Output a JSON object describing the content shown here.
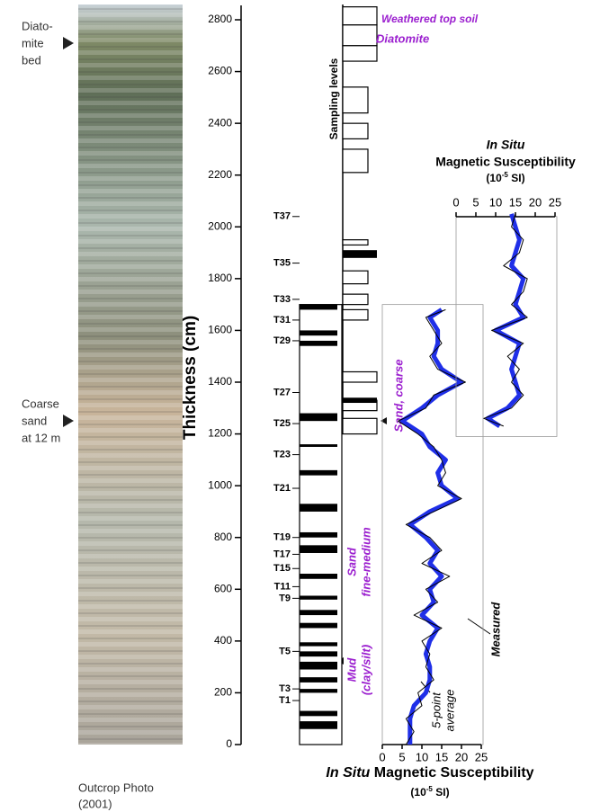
{
  "photo": {
    "top_label": [
      "Diato-",
      "mite",
      "bed"
    ],
    "side_label": [
      "Coarse",
      "sand",
      "at 12 m"
    ],
    "caption": [
      "Outcrop Photo",
      "(2001)"
    ]
  },
  "thickness_axis": {
    "title": "Thickness (cm)",
    "lim": [
      0,
      2800
    ],
    "ticks": [
      0,
      200,
      400,
      600,
      800,
      1000,
      1200,
      1400,
      1600,
      1800,
      2000,
      2200,
      2400,
      2600,
      2800
    ]
  },
  "sampling_label": "Sampling levels",
  "samples": [
    {
      "label": "T1",
      "value": 170
    },
    {
      "label": "T3",
      "value": 215
    },
    {
      "label": "T5",
      "value": 360
    },
    {
      "label": "T9",
      "value": 565
    },
    {
      "label": "T11",
      "value": 610
    },
    {
      "label": "T15",
      "value": 680
    },
    {
      "label": "T17",
      "value": 735
    },
    {
      "label": "T19",
      "value": 800
    },
    {
      "label": "T21",
      "value": 990
    },
    {
      "label": "T23",
      "value": 1120
    },
    {
      "label": "T25",
      "value": 1240
    },
    {
      "label": "T27",
      "value": 1360
    },
    {
      "label": "T29",
      "value": 1560
    },
    {
      "label": "T31",
      "value": 1640
    },
    {
      "label": "T33",
      "value": 1720
    },
    {
      "label": "T35",
      "value": 1860
    },
    {
      "label": "T37",
      "value": 2040
    }
  ],
  "lower_column_beds": [
    [
      60,
      90
    ],
    [
      110,
      130
    ],
    [
      200,
      215
    ],
    [
      240,
      260
    ],
    [
      290,
      320
    ],
    [
      340,
      360
    ],
    [
      380,
      395
    ],
    [
      450,
      470
    ],
    [
      500,
      520
    ],
    [
      560,
      575
    ],
    [
      640,
      660
    ],
    [
      740,
      770
    ],
    [
      800,
      820
    ],
    [
      900,
      930
    ],
    [
      1040,
      1060
    ],
    [
      1150,
      1160
    ],
    [
      1250,
      1280
    ],
    [
      1540,
      1560
    ],
    [
      1580,
      1600
    ],
    [
      1680,
      1700
    ]
  ],
  "upper_column_boxes": [
    [
      2780,
      2850
    ],
    [
      2700,
      2780
    ],
    [
      2640,
      2700
    ],
    [
      2440,
      2540
    ],
    [
      2340,
      2400
    ],
    [
      2210,
      2300
    ],
    [
      1930,
      1950
    ],
    [
      1780,
      1830
    ],
    [
      1700,
      1740
    ],
    [
      1640,
      1680
    ],
    [
      1400,
      1440
    ],
    [
      1290,
      1330
    ],
    [
      1200,
      1260
    ]
  ],
  "upper_column_black": [
    [
      1880,
      1910
    ],
    [
      1320,
      1340
    ]
  ],
  "annotations": {
    "top_soil": "Weathered top soil",
    "diatomite": "Diatomite",
    "sand_coarse": "Sand, coarse",
    "sand_fine": [
      "Sand",
      "fine-medium"
    ],
    "mud": [
      "Mud",
      "(clay/silt)"
    ],
    "measured": "Measured",
    "average": [
      "5-point",
      "average"
    ]
  },
  "lower_plot": {
    "title": [
      "In Situ",
      " Magnetic Susceptibility"
    ],
    "unit": [
      "(10",
      "-5",
      " SI)"
    ],
    "xlim": [
      0,
      25
    ],
    "xticks": [
      0,
      5,
      10,
      15,
      20,
      25
    ],
    "depth": [
      0,
      50,
      100,
      150,
      200,
      250,
      300,
      350,
      400,
      450,
      500,
      550,
      600,
      650,
      700,
      750,
      800,
      850,
      900,
      950,
      1000,
      1050,
      1100,
      1150,
      1200,
      1250,
      1300,
      1350,
      1400,
      1450,
      1500,
      1550,
      1600,
      1650,
      1680
    ],
    "measured": [
      6,
      8,
      6,
      10,
      9,
      13,
      11,
      12,
      10,
      15,
      8,
      14,
      11,
      17,
      10,
      15,
      12,
      6,
      13,
      20,
      14,
      16,
      15,
      13,
      9,
      4,
      11,
      13,
      21,
      14,
      12,
      15,
      13,
      11,
      16
    ],
    "average": [
      7,
      7,
      7,
      8,
      11,
      12,
      12,
      11,
      12,
      14,
      10,
      13,
      12,
      15,
      12,
      14,
      11,
      7,
      12,
      19,
      15,
      14,
      16,
      12,
      10,
      5,
      10,
      14,
      20,
      15,
      13,
      14,
      14,
      12,
      15
    ]
  },
  "upper_plot": {
    "title": [
      "In Situ",
      "Magnetic Susceptibility"
    ],
    "unit": [
      "(10",
      "-5",
      " SI)"
    ],
    "xlim": [
      0,
      25
    ],
    "xticks": [
      0,
      5,
      10,
      15,
      20,
      25
    ],
    "depth": [
      1230,
      1260,
      1300,
      1350,
      1400,
      1450,
      1500,
      1550,
      1600,
      1650,
      1700,
      1750,
      1800,
      1850,
      1900,
      1950,
      2000,
      2050
    ],
    "measured": [
      12,
      7,
      14,
      17,
      14,
      16,
      13,
      17,
      9,
      18,
      14,
      17,
      18,
      12,
      16,
      17,
      14,
      15
    ],
    "average": [
      11,
      8,
      13,
      16,
      15,
      14,
      15,
      16,
      10,
      17,
      15,
      16,
      17,
      14,
      15,
      16,
      15,
      14
    ]
  }
}
